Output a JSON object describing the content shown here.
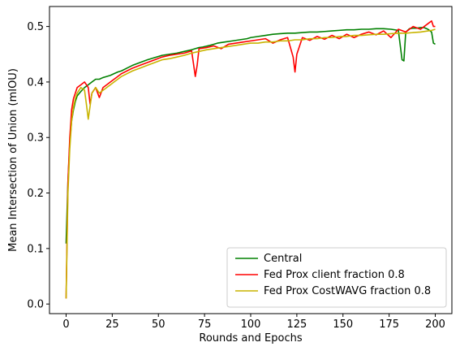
{
  "chart_data": {
    "type": "line",
    "title": "",
    "xlabel": "Rounds and Epochs",
    "ylabel": "Mean Intersection of Union (mIOU)",
    "xlim": [
      -9,
      209
    ],
    "ylim": [
      -0.0173,
      0.536
    ],
    "xticks": [
      0,
      25,
      50,
      75,
      100,
      125,
      150,
      175,
      200
    ],
    "yticks": [
      0.0,
      0.1,
      0.2,
      0.3,
      0.4,
      0.5
    ],
    "xtick_labels": [
      "0",
      "25",
      "50",
      "75",
      "100",
      "125",
      "150",
      "175",
      "200"
    ],
    "ytick_labels": [
      "0.0",
      "0.1",
      "0.2",
      "0.3",
      "0.4",
      "0.5"
    ],
    "grid": false,
    "legend_position": "lower-right",
    "series": [
      {
        "name": "Central",
        "color": "#008000",
        "x": [
          0,
          1,
          2,
          3,
          4,
          5,
          6,
          8,
          10,
          12,
          14,
          16,
          18,
          20,
          22,
          24,
          26,
          28,
          30,
          33,
          36,
          40,
          44,
          48,
          52,
          56,
          60,
          64,
          68,
          70,
          72,
          74,
          78,
          80,
          82,
          86,
          90,
          94,
          98,
          100,
          104,
          108,
          112,
          116,
          120,
          124,
          128,
          132,
          136,
          140,
          144,
          148,
          152,
          156,
          160,
          164,
          168,
          172,
          176,
          180,
          182,
          183,
          184,
          186,
          188,
          190,
          192,
          194,
          196,
          198,
          199,
          200
        ],
        "y": [
          0.109,
          0.22,
          0.29,
          0.33,
          0.35,
          0.365,
          0.375,
          0.383,
          0.39,
          0.395,
          0.4,
          0.405,
          0.405,
          0.408,
          0.41,
          0.412,
          0.415,
          0.418,
          0.42,
          0.425,
          0.43,
          0.435,
          0.44,
          0.444,
          0.448,
          0.45,
          0.452,
          0.455,
          0.458,
          0.46,
          0.462,
          0.463,
          0.466,
          0.468,
          0.47,
          0.472,
          0.474,
          0.476,
          0.478,
          0.48,
          0.482,
          0.484,
          0.486,
          0.487,
          0.488,
          0.488,
          0.489,
          0.49,
          0.49,
          0.491,
          0.492,
          0.493,
          0.494,
          0.494,
          0.495,
          0.495,
          0.496,
          0.496,
          0.495,
          0.493,
          0.44,
          0.438,
          0.49,
          0.496,
          0.497,
          0.497,
          0.498,
          0.498,
          0.495,
          0.49,
          0.47,
          0.468
        ]
      },
      {
        "name": "Fed Prox client fraction 0.8",
        "color": "#ff0000",
        "x": [
          0,
          1,
          2,
          3,
          4,
          5,
          6,
          8,
          10,
          12,
          13,
          14,
          16,
          18,
          20,
          22,
          24,
          26,
          28,
          30,
          33,
          36,
          40,
          44,
          48,
          52,
          56,
          60,
          64,
          68,
          70,
          71,
          72,
          76,
          80,
          84,
          88,
          92,
          96,
          100,
          104,
          108,
          112,
          116,
          120,
          123,
          124,
          125,
          128,
          132,
          136,
          140,
          144,
          148,
          152,
          156,
          160,
          164,
          168,
          172,
          176,
          180,
          184,
          188,
          192,
          196,
          198,
          199,
          200
        ],
        "y": [
          0.01,
          0.22,
          0.3,
          0.35,
          0.37,
          0.38,
          0.39,
          0.395,
          0.4,
          0.39,
          0.36,
          0.38,
          0.39,
          0.372,
          0.39,
          0.395,
          0.4,
          0.405,
          0.41,
          0.415,
          0.42,
          0.425,
          0.43,
          0.435,
          0.44,
          0.445,
          0.448,
          0.45,
          0.452,
          0.456,
          0.41,
          0.43,
          0.46,
          0.462,
          0.465,
          0.46,
          0.468,
          0.47,
          0.472,
          0.474,
          0.476,
          0.478,
          0.47,
          0.476,
          0.48,
          0.445,
          0.418,
          0.45,
          0.48,
          0.475,
          0.482,
          0.477,
          0.484,
          0.478,
          0.486,
          0.48,
          0.486,
          0.49,
          0.485,
          0.492,
          0.48,
          0.495,
          0.49,
          0.5,
          0.495,
          0.505,
          0.51,
          0.5,
          0.5
        ]
      },
      {
        "name": "Fed Prox CostWAVG fraction 0.8",
        "color": "#c8b400",
        "x": [
          0,
          1,
          2,
          3,
          4,
          5,
          6,
          8,
          10,
          11,
          12,
          14,
          16,
          18,
          20,
          22,
          24,
          26,
          28,
          30,
          33,
          36,
          40,
          44,
          48,
          52,
          56,
          60,
          64,
          68,
          72,
          76,
          80,
          84,
          88,
          92,
          96,
          100,
          104,
          108,
          112,
          116,
          120,
          124,
          128,
          132,
          136,
          140,
          144,
          148,
          152,
          156,
          160,
          164,
          168,
          172,
          176,
          180,
          184,
          188,
          192,
          196,
          198,
          200
        ],
        "y": [
          0.01,
          0.2,
          0.28,
          0.33,
          0.355,
          0.37,
          0.38,
          0.39,
          0.385,
          0.36,
          0.333,
          0.38,
          0.39,
          0.38,
          0.385,
          0.39,
          0.395,
          0.4,
          0.405,
          0.41,
          0.415,
          0.42,
          0.425,
          0.43,
          0.435,
          0.44,
          0.442,
          0.445,
          0.448,
          0.452,
          0.455,
          0.458,
          0.46,
          0.462,
          0.464,
          0.466,
          0.468,
          0.47,
          0.47,
          0.472,
          0.472,
          0.474,
          0.474,
          0.476,
          0.476,
          0.478,
          0.478,
          0.48,
          0.48,
          0.482,
          0.482,
          0.484,
          0.484,
          0.485,
          0.486,
          0.486,
          0.487,
          0.488,
          0.488,
          0.489,
          0.49,
          0.492,
          0.493,
          0.495
        ]
      }
    ]
  }
}
